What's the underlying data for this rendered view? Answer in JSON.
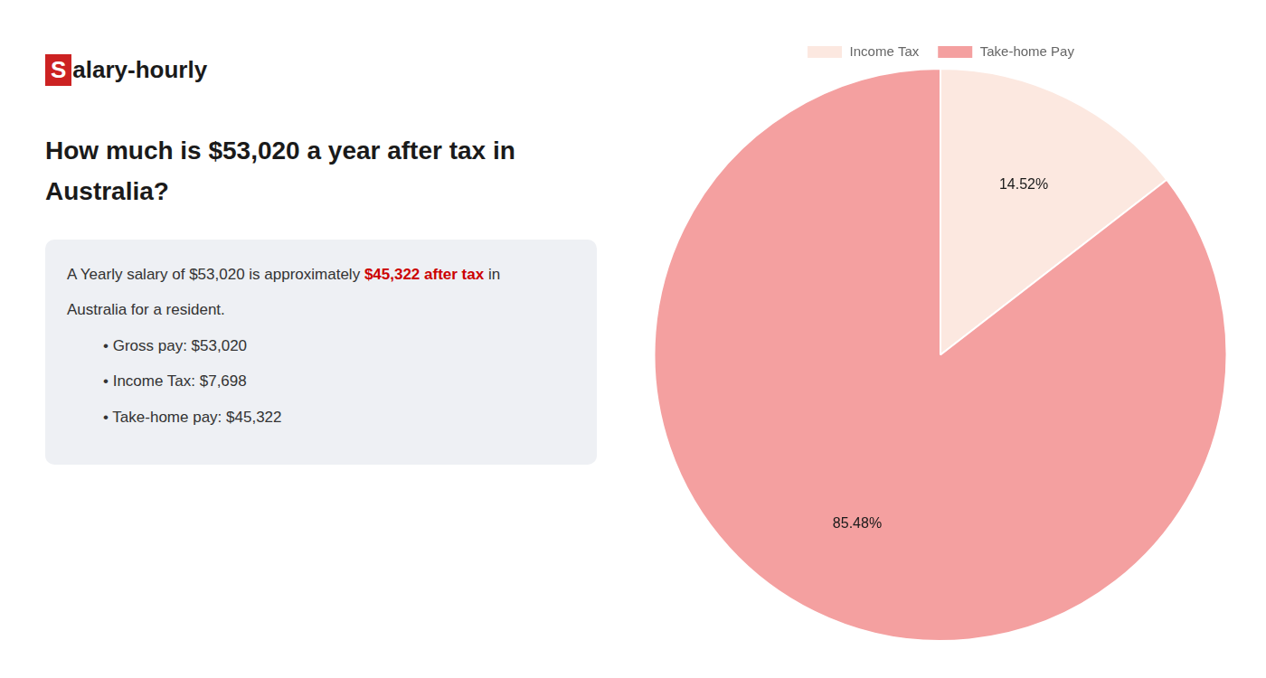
{
  "chart_data": {
    "type": "pie",
    "title": [
      "How much is $53,020 a year after tax in",
      "Australia?"
    ],
    "categories": [
      "Income Tax",
      "Take-home Pay"
    ],
    "values": [
      14.52,
      85.48
    ],
    "value_labels": [
      "14.52%",
      "85.48%"
    ],
    "colors": [
      "#fce8e0",
      "#f4a0a0"
    ],
    "data_labels": true,
    "legend": "top",
    "annotations": [
      [
        {
          "text": "S",
          "color": "#cc2222"
        },
        {
          "text": "alary-hourly"
        }
      ],
      [
        {
          "text": "A Yearly salary of $53,020 is approximately "
        },
        {
          "text": "$45,322 after tax",
          "color": "#cc0000"
        },
        {
          "text": " in"
        }
      ],
      "Australia for a resident.",
      "• Gross pay: $53,020",
      "• Income Tax: $7,698",
      "• Take-home pay: $45,322"
    ]
  }
}
